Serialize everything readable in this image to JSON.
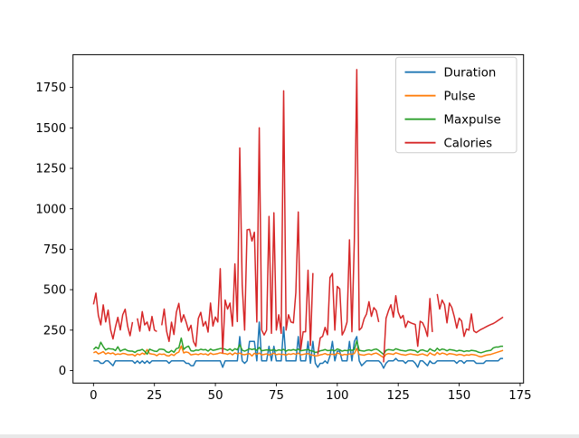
{
  "figure": {
    "background_color": "#ffffff",
    "spine_color": "#000000",
    "legend_border_color": "#cccccc",
    "legend_background": "#ffffff"
  },
  "chart_data": {
    "type": "line",
    "title": "",
    "xlabel": "",
    "ylabel": "",
    "x_description": "row index of dataset (0-168); x value equals array index of each series",
    "x_ticks": [
      0,
      25,
      50,
      75,
      100,
      125,
      150,
      175
    ],
    "y_ticks": [
      0,
      250,
      500,
      750,
      1000,
      1250,
      1500,
      1750
    ],
    "xlim": [
      -8.4,
      176.4
    ],
    "ylim": [
      -77.3,
      1952.7
    ],
    "grid": false,
    "legend_position": "upper right",
    "legend_entries": [
      "Duration",
      "Pulse",
      "Maxpulse",
      "Calories"
    ],
    "series": [
      {
        "name": "Duration",
        "color": "#1f77b4",
        "values": [
          60,
          60,
          60,
          45,
          45,
          60,
          60,
          45,
          30,
          60,
          60,
          60,
          60,
          60,
          60,
          60,
          60,
          45,
          60,
          45,
          60,
          45,
          60,
          45,
          60,
          60,
          60,
          60,
          60,
          60,
          60,
          45,
          60,
          60,
          60,
          60,
          60,
          60,
          45,
          45,
          30,
          30,
          60,
          60,
          60,
          60,
          60,
          60,
          60,
          60,
          60,
          60,
          60,
          20,
          60,
          60,
          60,
          60,
          60,
          60,
          210,
          60,
          45,
          60,
          180,
          180,
          180,
          60,
          300,
          60,
          60,
          60,
          150,
          60,
          150,
          60,
          60,
          60,
          270,
          60,
          60,
          60,
          60,
          60,
          210,
          60,
          60,
          60,
          180,
          45,
          180,
          45,
          20,
          45,
          45,
          60,
          45,
          90,
          180,
          60,
          120,
          120,
          60,
          60,
          60,
          180,
          60,
          180,
          210,
          60,
          30,
          45,
          60,
          60,
          60,
          60,
          60,
          60,
          45,
          15,
          45,
          60,
          60,
          60,
          75,
          60,
          60,
          60,
          45,
          60,
          60,
          60,
          45,
          20,
          60,
          60,
          45,
          30,
          60,
          45,
          45,
          60,
          60,
          60,
          60,
          60,
          60,
          60,
          60,
          45,
          60,
          60,
          45,
          60,
          60,
          60,
          60,
          45,
          45,
          45,
          45,
          60,
          60,
          60,
          60,
          60,
          60,
          75,
          75
        ]
      },
      {
        "name": "Pulse",
        "color": "#ff7f0e",
        "values": [
          110,
          117,
          103,
          109,
          117,
          102,
          110,
          104,
          109,
          98,
          103,
          100,
          106,
          104,
          98,
          98,
          100,
          90,
          103,
          97,
          108,
          100,
          130,
          105,
          102,
          100,
          92,
          103,
          100,
          102,
          92,
          90,
          101,
          93,
          107,
          114,
          152,
          109,
          115,
          111,
          97,
          100,
          102,
          98,
          105,
          100,
          103,
          95,
          108,
          100,
          102,
          105,
          110,
          106,
          105,
          100,
          108,
          97,
          109,
          103,
          108,
          100,
          98,
          102,
          105,
          90,
          107,
          100,
          108,
          97,
          100,
          103,
          97,
          100,
          107,
          98,
          102,
          100,
          100,
          95,
          103,
          100,
          105,
          100,
          108,
          97,
          100,
          103,
          105,
          98,
          95,
          90,
          92,
          97,
          100,
          105,
          98,
          100,
          101,
          97,
          109,
          103,
          95,
          100,
          98,
          103,
          100,
          105,
          137,
          100,
          97,
          95,
          100,
          103,
          98,
          105,
          108,
          100,
          90,
          80,
          100,
          105,
          103,
          100,
          110,
          105,
          100,
          98,
          95,
          100,
          103,
          100,
          98,
          95,
          100,
          103,
          97,
          92,
          110,
          100,
          95,
          112,
          100,
          108,
          105,
          97,
          105,
          103,
          100,
          95,
          100,
          98,
          92,
          97,
          95,
          100,
          98,
          95,
          88,
          85,
          90,
          95,
          98,
          100,
          105,
          110,
          115,
          120,
          125
        ]
      },
      {
        "name": "Maxpulse",
        "color": "#2ca02c",
        "values": [
          130,
          145,
          135,
          175,
          148,
          127,
          136,
          134,
          133,
          124,
          147,
          120,
          128,
          132,
          123,
          120,
          120,
          112,
          123,
          125,
          131,
          119,
          101,
          132,
          126,
          120,
          118,
          132,
          132,
          129,
          115,
          112,
          124,
          113,
          136,
          140,
          201,
          131,
          144,
          151,
          122,
          120,
          127,
          125,
          132,
          128,
          130,
          120,
          133,
          125,
          128,
          132,
          136,
          136,
          132,
          125,
          134,
          122,
          135,
          128,
          160,
          126,
          120,
          127,
          135,
          130,
          134,
          125,
          143,
          122,
          125,
          128,
          127,
          125,
          130,
          122,
          128,
          125,
          131,
          120,
          128,
          125,
          130,
          125,
          133,
          122,
          125,
          128,
          130,
          123,
          120,
          112,
          115,
          122,
          125,
          130,
          123,
          125,
          127,
          122,
          134,
          128,
          120,
          125,
          123,
          128,
          125,
          130,
          184,
          125,
          122,
          120,
          125,
          128,
          123,
          130,
          133,
          125,
          112,
          100,
          125,
          130,
          128,
          125,
          135,
          130,
          125,
          123,
          120,
          125,
          128,
          125,
          123,
          112,
          125,
          128,
          122,
          117,
          135,
          125,
          120,
          138,
          125,
          133,
          130,
          122,
          130,
          128,
          125,
          120,
          125,
          123,
          117,
          122,
          120,
          125,
          123,
          120,
          113,
          110,
          115,
          120,
          123,
          125,
          140,
          145,
          145,
          150,
          150
        ]
      },
      {
        "name": "Calories",
        "color": "#d62728",
        "values": [
          409.1,
          479.0,
          340.0,
          282.4,
          406.0,
          300.5,
          374.0,
          253.3,
          195.1,
          269.0,
          329.3,
          250.7,
          345.3,
          379.3,
          275.0,
          215.2,
          300.0,
          null,
          323.0,
          243.0,
          364.2,
          282.0,
          300.0,
          246.0,
          334.5,
          250.0,
          241.0,
          null,
          280.0,
          380.3,
          243.0,
          180.1,
          299.0,
          223.0,
          361.0,
          415.1,
          300.0,
          345.0,
          300.0,
          246.0,
          280.0,
          180.0,
          150.0,
          322.0,
          360.0,
          275.0,
          303.0,
          238.0,
          417.0,
          275.0,
          331.0,
          300.0,
          630.0,
          110.4,
          436.0,
          380.0,
          417.0,
          275.0,
          659.0,
          303.0,
          1376.0,
          529.0,
          250.0,
          870.0,
          873.4,
          800.4,
          855.0,
          300.0,
          1500.2,
          250.0,
          220.0,
          250.0,
          953.2,
          230.0,
          975.0,
          250.0,
          345.0,
          230.0,
          1729.0,
          250.0,
          345.0,
          300.0,
          295.0,
          482.0,
          980.0,
          130.0,
          240.0,
          240.0,
          620.0,
          155.0,
          603.0,
          null,
          100.0,
          202.0,
          212.0,
          267.0,
          221.0,
          575.0,
          600.1,
          250.0,
          520.0,
          505.0,
          220.0,
          250.0,
          300.0,
          808.0,
          240.0,
          800.0,
          1860.4,
          250.0,
          265.0,
          320.0,
          350.0,
          426.0,
          335.0,
          389.0,
          370.0,
          300.0,
          null,
          50.5,
          323.0,
          370.0,
          407.0,
          330.0,
          463.0,
          361.0,
          323.0,
          341.0,
          267.0,
          305.0,
          296.0,
          290.0,
          285.0,
          150.0,
          305.0,
          295.0,
          262.0,
          211.0,
          445.0,
          238.0,
          null,
          473.0,
          380.0,
          436.0,
          407.0,
          295.0,
          417.0,
          389.0,
          333.0,
          262.0,
          324.0,
          306.0,
          211.0,
          257.0,
          250.0,
          350.0,
          245.0,
          235.0,
          245.0,
          255.0,
          262.0,
          270.0,
          278.0,
          285.0,
          290.8,
          300.0,
          310.2,
          320.4,
          330.4
        ]
      }
    ]
  }
}
